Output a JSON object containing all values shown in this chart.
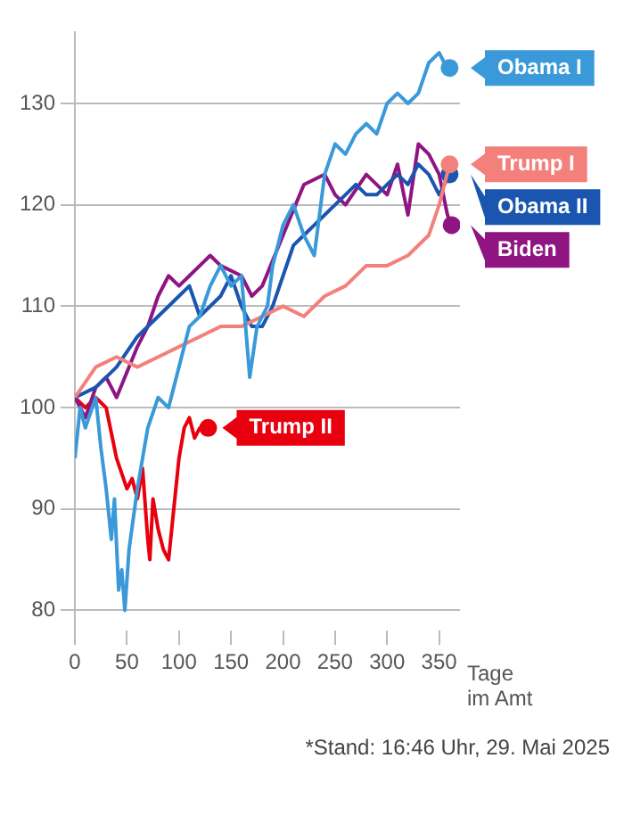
{
  "chart_data": {
    "type": "line",
    "xlabel": "Tage im Amt",
    "annotations": [
      "*Stand: 16:46 Uhr, 29. Mai 2025"
    ],
    "xlim": [
      0,
      370
    ],
    "xticks": [
      0,
      50,
      100,
      150,
      200,
      250,
      300,
      350
    ],
    "ylim": [
      78,
      137
    ],
    "yticks": [
      80,
      90,
      100,
      110,
      120,
      130
    ],
    "grid": "y",
    "legend": false,
    "series": [
      {
        "name": "Obama I",
        "color": "#3a9ad9",
        "x": [
          0,
          5,
          10,
          20,
          25,
          30,
          35,
          38,
          42,
          45,
          48,
          52,
          56,
          60,
          65,
          70,
          80,
          90,
          100,
          110,
          120,
          130,
          140,
          150,
          160,
          168,
          175,
          185,
          190,
          200,
          210,
          220,
          230,
          240,
          250,
          260,
          270,
          280,
          290,
          300,
          310,
          320,
          330,
          340,
          350,
          355,
          360
        ],
        "values": [
          95,
          100,
          98,
          101,
          96,
          92,
          87,
          91,
          82,
          84,
          80,
          86,
          89,
          92,
          95,
          98,
          101,
          100,
          104,
          108,
          109,
          112,
          114,
          112,
          113,
          103,
          108,
          110,
          114,
          118,
          120,
          117,
          115,
          123,
          126,
          125,
          127,
          128,
          127,
          130,
          131,
          130,
          131,
          134,
          135,
          134,
          133.5
        ]
      },
      {
        "name": "Trump I",
        "color": "#f4807c",
        "x": [
          0,
          20,
          40,
          60,
          80,
          100,
          120,
          140,
          160,
          180,
          200,
          220,
          240,
          260,
          280,
          300,
          320,
          340,
          350,
          360
        ],
        "values": [
          101,
          104,
          105,
          104,
          105,
          106,
          107,
          108,
          108,
          109,
          110,
          109,
          111,
          112,
          114,
          114,
          115,
          117,
          120,
          124
        ]
      },
      {
        "name": "Obama II",
        "color": "#1a56b0",
        "x": [
          0,
          20,
          40,
          60,
          80,
          100,
          110,
          120,
          140,
          150,
          160,
          170,
          180,
          190,
          200,
          210,
          220,
          230,
          240,
          250,
          260,
          270,
          280,
          290,
          300,
          310,
          320,
          330,
          340,
          350,
          360
        ],
        "values": [
          101,
          102,
          104,
          107,
          109,
          111,
          112,
          109,
          111,
          113,
          110,
          108,
          108,
          110,
          113,
          116,
          117,
          118,
          119,
          120,
          121,
          122,
          121,
          121,
          122,
          123,
          122,
          124,
          123,
          121,
          123
        ]
      },
      {
        "name": "Biden",
        "color": "#8e1582",
        "x": [
          0,
          10,
          20,
          30,
          40,
          60,
          70,
          80,
          90,
          100,
          110,
          120,
          130,
          140,
          160,
          170,
          180,
          200,
          220,
          240,
          250,
          260,
          280,
          300,
          310,
          320,
          330,
          340,
          350,
          358,
          362
        ],
        "values": [
          101,
          99,
          102,
          103,
          101,
          106,
          108,
          111,
          113,
          112,
          113,
          114,
          115,
          114,
          113,
          111,
          112,
          117,
          122,
          123,
          121,
          120,
          123,
          121,
          124,
          119,
          126,
          125,
          123,
          119,
          118
        ]
      },
      {
        "name": "Trump II",
        "color": "#e8000f",
        "x": [
          0,
          10,
          20,
          30,
          40,
          50,
          55,
          60,
          65,
          70,
          72,
          75,
          80,
          85,
          90,
          95,
          100,
          105,
          110,
          115,
          120,
          128
        ],
        "values": [
          101,
          100,
          101,
          100,
          95,
          92,
          93,
          91,
          94,
          87,
          85,
          91,
          88,
          86,
          85,
          90,
          95,
          98,
          99,
          97,
          98,
          98
        ]
      }
    ]
  }
}
